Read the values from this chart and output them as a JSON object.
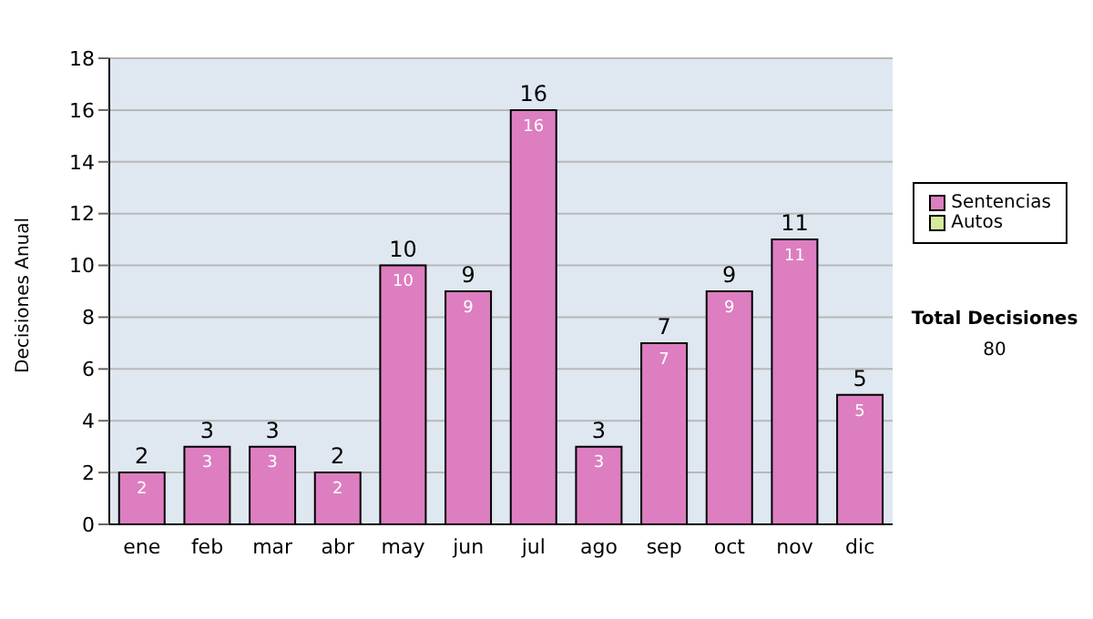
{
  "chart_data": {
    "type": "bar",
    "ylabel": "Decisiones Anual",
    "categories": [
      "ene",
      "feb",
      "mar",
      "abr",
      "may",
      "jun",
      "jul",
      "ago",
      "sep",
      "oct",
      "nov",
      "dic"
    ],
    "series": [
      {
        "name": "Sentencias",
        "color": "#dd7ec0",
        "values": [
          2,
          3,
          3,
          2,
          10,
          9,
          16,
          3,
          7,
          9,
          11,
          5
        ],
        "value_labels": [
          "2",
          "3",
          "3",
          "2",
          "10",
          "9",
          "16",
          "3",
          "7",
          "9",
          "11",
          "5"
        ]
      },
      {
        "name": "Autos",
        "color": "#d4ea9c",
        "values": [
          0,
          0,
          0,
          0,
          0,
          0,
          0,
          0,
          0,
          0,
          0,
          0
        ]
      }
    ],
    "stacked": true,
    "totals": [
      "2",
      "3",
      "3",
      "2",
      "10",
      "9",
      "16",
      "3",
      "7",
      "9",
      "11",
      "5"
    ],
    "ylim": [
      0,
      18
    ],
    "yticks": [
      0,
      2,
      4,
      6,
      8,
      10,
      12,
      14,
      16,
      18
    ],
    "grid": "y",
    "legend": "right",
    "annotations": [
      "Total Decisiones",
      "80"
    ]
  }
}
